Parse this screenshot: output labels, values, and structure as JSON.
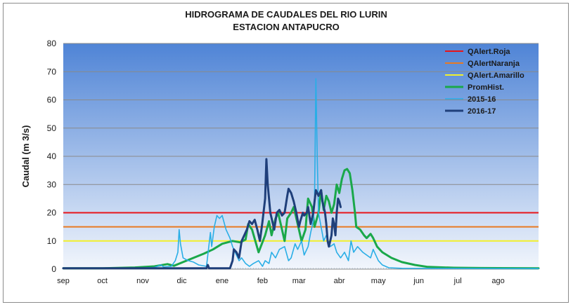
{
  "chart_data": {
    "type": "line",
    "title": "HIDROGRAMA DE CAUDALES DEL RIO LURIN",
    "subtitle": "ESTACION ANTAPUCRO",
    "xlabel": "",
    "ylabel": "Caudal (m 3/s)",
    "ylim": [
      0,
      80
    ],
    "yticks": [
      0,
      10,
      20,
      30,
      40,
      50,
      60,
      70,
      80
    ],
    "x_axis": {
      "unit": "day-of-hydrological-year",
      "range": [
        0,
        365
      ],
      "tick_positions": [
        0,
        30,
        61,
        91,
        122,
        153,
        181,
        212,
        242,
        273,
        303,
        334
      ]
    },
    "months": [
      "sep",
      "oct",
      "nov",
      "dic",
      "ene",
      "feb",
      "mar",
      "abr",
      "may",
      "jun",
      "jul",
      "ago"
    ],
    "grid": true,
    "legend_position": "top-right",
    "thresholds": [
      {
        "name": "QAlert.Roja",
        "value": 20,
        "color": "#e8141a"
      },
      {
        "name": "QAlertNaranja",
        "value": 15,
        "color": "#e87a22"
      },
      {
        "name": "QAlert.Amarillo",
        "value": 10,
        "color": "#f2f02a"
      }
    ],
    "series": [
      {
        "name": "PromHist.",
        "color": "#1aa84a",
        "width": 3,
        "points": [
          [
            0,
            0.3
          ],
          [
            30,
            0.3
          ],
          [
            55,
            0.6
          ],
          [
            70,
            1.0
          ],
          [
            80,
            1.8
          ],
          [
            85,
            1.2
          ],
          [
            92,
            2.5
          ],
          [
            100,
            4.0
          ],
          [
            108,
            5.5
          ],
          [
            115,
            7.0
          ],
          [
            122,
            9.0
          ],
          [
            130,
            10.0
          ],
          [
            136,
            9.5
          ],
          [
            140,
            10.5
          ],
          [
            142,
            16.0
          ],
          [
            145,
            14.0
          ],
          [
            150,
            6.0
          ],
          [
            155,
            12.0
          ],
          [
            158,
            17.0
          ],
          [
            160,
            12.0
          ],
          [
            163,
            18.0
          ],
          [
            165,
            20.0
          ],
          [
            168,
            14.0
          ],
          [
            170,
            10.0
          ],
          [
            172,
            18.0
          ],
          [
            175,
            20.0
          ],
          [
            177,
            22.0
          ],
          [
            180,
            16.0
          ],
          [
            183,
            10.0
          ],
          [
            186,
            14.0
          ],
          [
            188,
            25.0
          ],
          [
            191,
            22.0
          ],
          [
            193,
            15.0
          ],
          [
            196,
            20.0
          ],
          [
            198,
            28.0
          ],
          [
            200,
            21.0
          ],
          [
            202,
            26.0
          ],
          [
            204,
            24.0
          ],
          [
            206,
            20.0
          ],
          [
            208,
            23.0
          ],
          [
            210,
            30.0
          ],
          [
            212,
            27.0
          ],
          [
            214,
            32.0
          ],
          [
            216,
            35.0
          ],
          [
            218,
            35.5
          ],
          [
            220,
            34.0
          ],
          [
            222,
            28.0
          ],
          [
            224,
            20.0
          ],
          [
            225,
            15.0
          ],
          [
            228,
            14.0
          ],
          [
            231,
            12.0
          ],
          [
            233,
            11.0
          ],
          [
            236,
            12.5
          ],
          [
            238,
            11.0
          ],
          [
            241,
            8.0
          ],
          [
            245,
            6.0
          ],
          [
            252,
            4.0
          ],
          [
            260,
            2.5
          ],
          [
            270,
            1.5
          ],
          [
            280,
            0.8
          ],
          [
            300,
            0.5
          ],
          [
            320,
            0.4
          ],
          [
            365,
            0.3
          ]
        ]
      },
      {
        "name": "2015-16",
        "color": "#29aee6",
        "width": 1.6,
        "points": [
          [
            0,
            0.3
          ],
          [
            50,
            0.3
          ],
          [
            60,
            0.4
          ],
          [
            70,
            0.6
          ],
          [
            75,
            1.5
          ],
          [
            77,
            0.8
          ],
          [
            83,
            1.0
          ],
          [
            86,
            3.0
          ],
          [
            88,
            6.0
          ],
          [
            89,
            14.0
          ],
          [
            90,
            9.0
          ],
          [
            92,
            4.0
          ],
          [
            96,
            3.0
          ],
          [
            100,
            2.5
          ],
          [
            104,
            1.5
          ],
          [
            110,
            1.0
          ],
          [
            113,
            13.0
          ],
          [
            114,
            8.0
          ],
          [
            116,
            15.0
          ],
          [
            118,
            19.0
          ],
          [
            120,
            18.0
          ],
          [
            122,
            19.0
          ],
          [
            125,
            14.0
          ],
          [
            128,
            11.0
          ],
          [
            130,
            8.0
          ],
          [
            133,
            5.0
          ],
          [
            135,
            3.0
          ],
          [
            137,
            4.0
          ],
          [
            140,
            2.0
          ],
          [
            143,
            1.0
          ],
          [
            146,
            2.0
          ],
          [
            150,
            3.0
          ],
          [
            153,
            1.0
          ],
          [
            155,
            3.0
          ],
          [
            158,
            2.0
          ],
          [
            160,
            6.0
          ],
          [
            163,
            4.0
          ],
          [
            166,
            7.0
          ],
          [
            170,
            8.0
          ],
          [
            173,
            3.0
          ],
          [
            175,
            4.0
          ],
          [
            178,
            9.0
          ],
          [
            180,
            7.0
          ],
          [
            183,
            10.0
          ],
          [
            185,
            5.0
          ],
          [
            188,
            8.0
          ],
          [
            190,
            13.0
          ],
          [
            192,
            17.0
          ],
          [
            193,
            25.0
          ],
          [
            194,
            67.5
          ],
          [
            195,
            40.0
          ],
          [
            196,
            20.0
          ],
          [
            198,
            15.0
          ],
          [
            200,
            10.0
          ],
          [
            202,
            12.0
          ],
          [
            205,
            8.0
          ],
          [
            208,
            9.0
          ],
          [
            210,
            6.0
          ],
          [
            213,
            4.0
          ],
          [
            216,
            6.0
          ],
          [
            219,
            3.0
          ],
          [
            221,
            10.0
          ],
          [
            223,
            6.0
          ],
          [
            226,
            8.0
          ],
          [
            230,
            6.0
          ],
          [
            233,
            5.0
          ],
          [
            236,
            4.0
          ],
          [
            238,
            7.0
          ],
          [
            240,
            5.0
          ],
          [
            242,
            3.0
          ],
          [
            245,
            1.5
          ],
          [
            250,
            0.5
          ],
          [
            260,
            0.3
          ],
          [
            365,
            0.2
          ]
        ]
      },
      {
        "name": "2016-17",
        "color": "#1f3f7a",
        "width": 3,
        "points": [
          [
            0,
            0.3
          ],
          [
            60,
            0.3
          ],
          [
            80,
            0.3
          ],
          [
            100,
            0.3
          ],
          [
            110,
            0.3
          ],
          [
            111,
            1.5
          ],
          [
            112,
            0.3
          ],
          [
            128,
            0.3
          ],
          [
            130,
            3.0
          ],
          [
            131,
            7.0
          ],
          [
            133,
            6.0
          ],
          [
            135,
            4.0
          ],
          [
            137,
            10.0
          ],
          [
            139,
            12.0
          ],
          [
            141,
            14.0
          ],
          [
            143,
            17.0
          ],
          [
            145,
            16.0
          ],
          [
            147,
            17.5
          ],
          [
            149,
            14.0
          ],
          [
            151,
            10.0
          ],
          [
            153,
            17.0
          ],
          [
            155,
            25.0
          ],
          [
            156,
            39.0
          ],
          [
            157,
            30.0
          ],
          [
            159,
            20.0
          ],
          [
            161,
            16.0
          ],
          [
            162,
            14.0
          ],
          [
            164,
            20.0
          ],
          [
            166,
            21.0
          ],
          [
            168,
            19.0
          ],
          [
            170,
            20.0
          ],
          [
            172,
            26.0
          ],
          [
            173,
            28.5
          ],
          [
            175,
            27.0
          ],
          [
            177,
            24.0
          ],
          [
            179,
            20.0
          ],
          [
            181,
            15.0
          ],
          [
            182,
            17.0
          ],
          [
            184,
            20.0
          ],
          [
            185,
            19.0
          ],
          [
            187,
            20.0
          ],
          [
            188,
            22.0
          ],
          [
            190,
            16.0
          ],
          [
            192,
            20.0
          ],
          [
            193,
            24.0
          ],
          [
            194,
            28.0
          ],
          [
            196,
            26.0
          ],
          [
            198,
            28.0
          ],
          [
            199,
            24.0
          ],
          [
            201,
            20.0
          ],
          [
            202,
            16.0
          ],
          [
            203,
            10.0
          ],
          [
            204,
            8.0
          ],
          [
            205,
            10.0
          ],
          [
            206,
            12.0
          ],
          [
            207,
            18.0
          ],
          [
            208,
            16.0
          ],
          [
            209,
            12.0
          ],
          [
            210,
            20.0
          ],
          [
            211,
            25.0
          ],
          [
            212,
            24.0
          ],
          [
            213,
            22.0
          ]
        ]
      }
    ]
  }
}
